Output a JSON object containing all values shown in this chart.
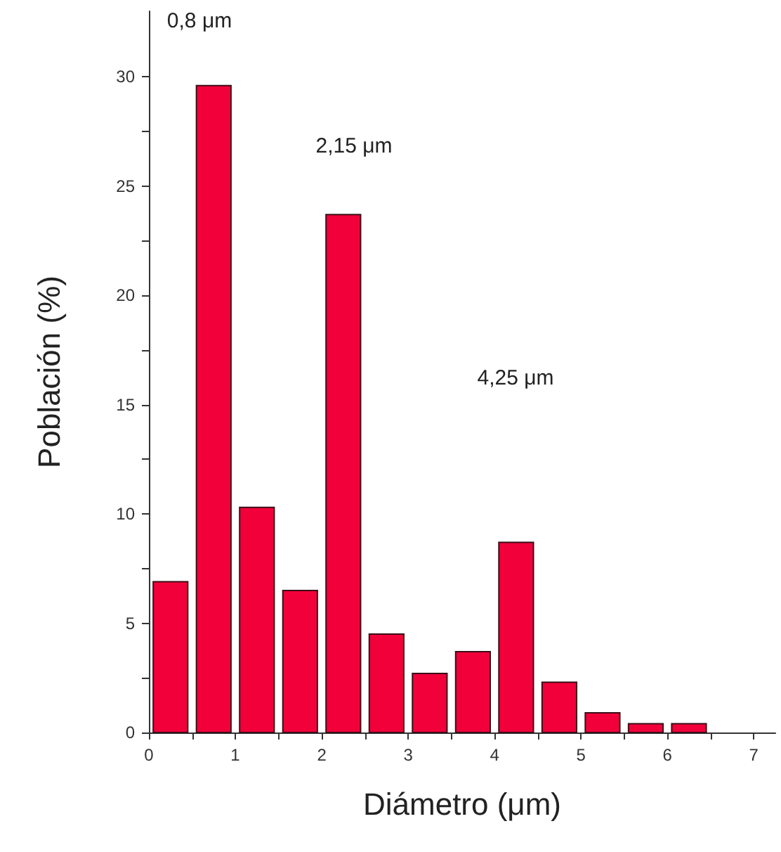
{
  "chart_data": {
    "type": "histogram",
    "xlabel": "Diámetro (μm)",
    "ylabel": "Población (%)",
    "bins": [
      0,
      0.5,
      1,
      1.5,
      2,
      2.5,
      3,
      3.5,
      4,
      4.5,
      5,
      5.5,
      6,
      6.5
    ],
    "values": [
      6.9,
      29.6,
      10.3,
      6.5,
      23.7,
      4.5,
      2.7,
      3.7,
      8.7,
      2.3,
      0.9,
      0.4,
      0.4
    ],
    "color": "#f2003a",
    "xlim": [
      0,
      7.25
    ],
    "xticks": [
      0,
      {
        "value": 0.5,
        "label": null
      },
      1,
      {
        "value": 1.5,
        "label": null
      },
      2,
      {
        "value": 2.5,
        "label": null
      },
      3,
      {
        "value": 3.5,
        "label": null
      },
      4,
      {
        "value": 4.5,
        "label": null
      },
      5,
      {
        "value": 5.5,
        "label": null
      },
      6,
      {
        "value": 6.5,
        "label": null
      },
      7
    ],
    "ylim": [
      0,
      33
    ],
    "yticks": [
      0,
      {
        "value": 2.5,
        "label": null
      },
      5,
      {
        "value": 7.5,
        "label": null
      },
      10,
      {
        "value": 12.5,
        "label": null
      },
      15,
      {
        "value": 17.5,
        "label": null
      },
      20,
      {
        "value": 22.5,
        "label": null
      },
      25,
      {
        "value": 27.5,
        "label": null
      },
      30
    ],
    "annotations": [
      "0,8 μm",
      "2,15 μm",
      "4,25 μm"
    ]
  }
}
